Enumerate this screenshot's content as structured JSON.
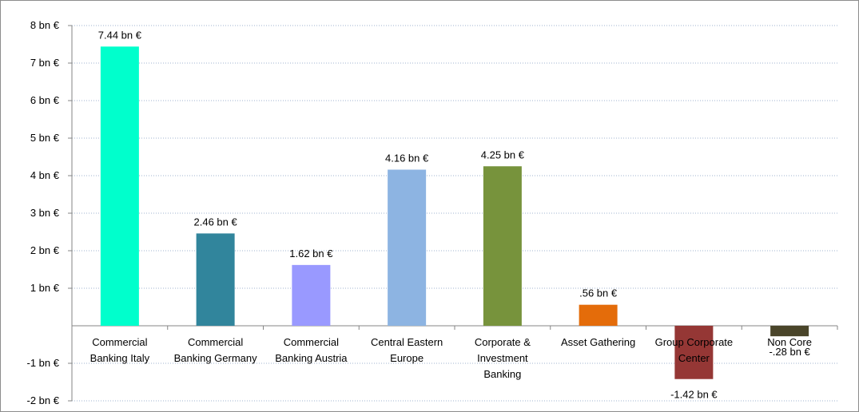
{
  "chart_data": {
    "type": "bar",
    "title": "",
    "xlabel": "",
    "ylabel": "",
    "ylim": [
      -2,
      8
    ],
    "grid": true,
    "legend": "none",
    "y_ticks": [
      {
        "value": 8,
        "label": "8 bn €"
      },
      {
        "value": 7,
        "label": "7 bn €"
      },
      {
        "value": 6,
        "label": "6 bn €"
      },
      {
        "value": 5,
        "label": "5 bn €"
      },
      {
        "value": 4,
        "label": "4 bn €"
      },
      {
        "value": 3,
        "label": "3 bn €"
      },
      {
        "value": 2,
        "label": "2 bn €"
      },
      {
        "value": 1,
        "label": "1 bn €"
      },
      {
        "value": -1,
        "label": "-1 bn €"
      },
      {
        "value": -2,
        "label": "-2 bn €"
      }
    ],
    "categories": [
      "Commercial Banking Italy",
      "Commercial Banking Germany",
      "Commercial Banking Austria",
      "Central Eastern Europe",
      "Corporate & Investment Banking",
      "Asset Gathering",
      "Group Corporate Center",
      "Non Core"
    ],
    "category_label_lines": [
      [
        "Commercial",
        "Banking Italy"
      ],
      [
        "Commercial",
        "Banking Germany"
      ],
      [
        "Commercial",
        "Banking Austria"
      ],
      [
        "Central Eastern",
        "Europe"
      ],
      [
        "Corporate &",
        "Investment",
        "Banking"
      ],
      [
        "Asset Gathering"
      ],
      [
        "Group Corporate",
        "Center"
      ],
      [
        "Non Core"
      ]
    ],
    "values": [
      7.44,
      2.46,
      1.62,
      4.16,
      4.25,
      0.56,
      -1.42,
      -0.28
    ],
    "value_labels": [
      "7.44  bn €",
      "2.46  bn €",
      "1.62  bn €",
      "4.16  bn €",
      "4.25  bn €",
      ".56  bn €",
      "-1.42  bn €",
      "-.28 bn €"
    ],
    "colors": [
      "#00FFCC",
      "#31859C",
      "#9999FF",
      "#8DB4E2",
      "#77933C",
      "#E46C0A",
      "#953735",
      "#4A452A"
    ]
  }
}
